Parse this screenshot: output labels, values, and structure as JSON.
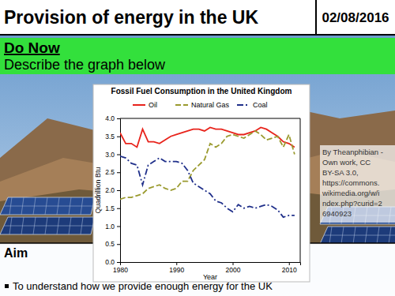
{
  "slide": {
    "title": "Provision of energy in the UK",
    "date": "02/08/2016",
    "do_now": {
      "heading": "Do Now",
      "text": "Describe the graph below"
    },
    "attribution": [
      "By Theanphibian -",
      "Own work, CC",
      "BY-SA 3.0,",
      "https://commons.",
      "wikimedia.org/w/i",
      "ndex.php?curid=2",
      "6940923"
    ],
    "aim": {
      "heading": "Aim",
      "bullets": [
        "To understand how we provide enough energy for the UK"
      ]
    }
  },
  "chart_data": {
    "type": "line",
    "title": "Fossil Fuel Consumption in the United Kingdom",
    "x_label": "Year",
    "y_label": "Quadrillion Btu",
    "x": [
      1980,
      1981,
      1982,
      1983,
      1984,
      1985,
      1986,
      1987,
      1988,
      1989,
      1990,
      1991,
      1992,
      1993,
      1994,
      1995,
      1996,
      1997,
      1998,
      1999,
      2000,
      2001,
      2002,
      2003,
      2004,
      2005,
      2006,
      2007,
      2008,
      2009,
      2010,
      2011
    ],
    "series": [
      {
        "name": "Oil",
        "color": "#e8231b",
        "line_style": "solid",
        "values": [
          3.6,
          3.3,
          3.3,
          3.2,
          3.7,
          3.35,
          3.35,
          3.3,
          3.4,
          3.5,
          3.55,
          3.6,
          3.65,
          3.7,
          3.7,
          3.65,
          3.75,
          3.7,
          3.7,
          3.65,
          3.6,
          3.55,
          3.55,
          3.6,
          3.65,
          3.75,
          3.7,
          3.6,
          3.5,
          3.35,
          3.3,
          3.2
        ]
      },
      {
        "name": "Natural Gas",
        "color": "#9a9a2e",
        "line_style": "dashed",
        "values": [
          1.75,
          1.8,
          1.8,
          1.85,
          1.9,
          2.05,
          2.1,
          2.15,
          2.05,
          2.0,
          2.05,
          2.25,
          2.25,
          2.55,
          2.7,
          2.85,
          3.3,
          3.2,
          3.3,
          3.5,
          3.55,
          3.5,
          3.45,
          3.55,
          3.65,
          3.55,
          3.4,
          3.45,
          3.5,
          3.2,
          3.55,
          3.0
        ]
      },
      {
        "name": "Coal",
        "color": "#1f2f8a",
        "line_style": "dashdot",
        "values": [
          2.95,
          2.9,
          2.75,
          2.7,
          2.15,
          2.7,
          2.8,
          2.9,
          2.8,
          2.8,
          2.8,
          2.75,
          2.55,
          2.2,
          2.1,
          2.0,
          1.9,
          1.7,
          1.65,
          1.5,
          1.4,
          1.6,
          1.5,
          1.55,
          1.5,
          1.55,
          1.6,
          1.55,
          1.45,
          1.25,
          1.3,
          1.3
        ]
      }
    ],
    "xlim": [
      1980,
      2012
    ],
    "xticks": [
      1980,
      1990,
      2000,
      2010
    ],
    "ylim": [
      0,
      4
    ],
    "yticks": [
      {
        "value": 0,
        "label": "0.0"
      },
      {
        "value": 0.5,
        "label": "0.5"
      },
      {
        "value": 1,
        "label": "1.0"
      },
      {
        "value": 1.5,
        "label": "1.5"
      },
      {
        "value": 2,
        "label": "2.0"
      },
      {
        "value": 2.5,
        "label": "2.5"
      },
      {
        "value": 3,
        "label": "3.0"
      },
      {
        "value": 3.5,
        "label": "3.5"
      },
      {
        "value": 4,
        "label": "4.0"
      }
    ],
    "grid": false,
    "legend": "top"
  }
}
